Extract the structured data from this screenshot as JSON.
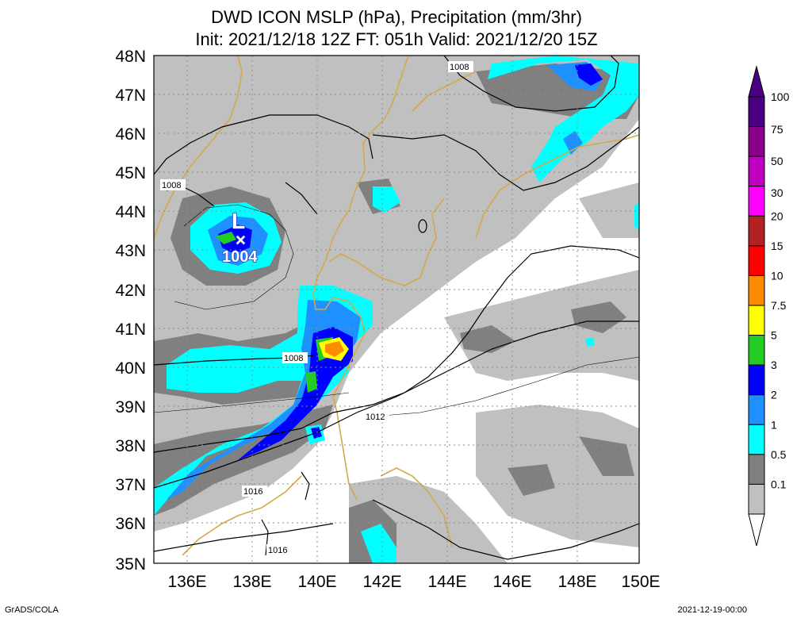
{
  "title": {
    "line1": "DWD ICON MSLP (hPa), Precipitation (mm/3hr)",
    "line2": "Init: 2021/12/18 12Z  FT: 051h  Valid: 2021/12/20 15Z"
  },
  "axes": {
    "lat_labels": [
      "48N",
      "47N",
      "46N",
      "45N",
      "44N",
      "43N",
      "42N",
      "41N",
      "40N",
      "39N",
      "38N",
      "37N",
      "36N",
      "35N"
    ],
    "lon_labels": [
      "136E",
      "138E",
      "140E",
      "142E",
      "144E",
      "146E",
      "148E",
      "150E"
    ]
  },
  "isobars": {
    "labels": [
      "1008",
      "1008",
      "1008",
      "1012",
      "1016",
      "1016"
    ]
  },
  "low_center": {
    "symbol": "L",
    "marker": "×",
    "pressure": "1004"
  },
  "colorbar": {
    "levels": [
      "100",
      "75",
      "50",
      "30",
      "20",
      "15",
      "10",
      "7.5",
      "5",
      "3",
      "2",
      "1",
      "0.5",
      "0.1"
    ],
    "colors": [
      "#4b0082",
      "#8b008b",
      "#c000c0",
      "#ff00ff",
      "#b22222",
      "#ff0000",
      "#ff8c00",
      "#ffff00",
      "#22cc22",
      "#0000ff",
      "#1e90ff",
      "#00ffff",
      "#808080",
      "#c0c0c0"
    ]
  },
  "footer": {
    "left": "GrADS/COLA",
    "right": "2021-12-19-00:00"
  }
}
